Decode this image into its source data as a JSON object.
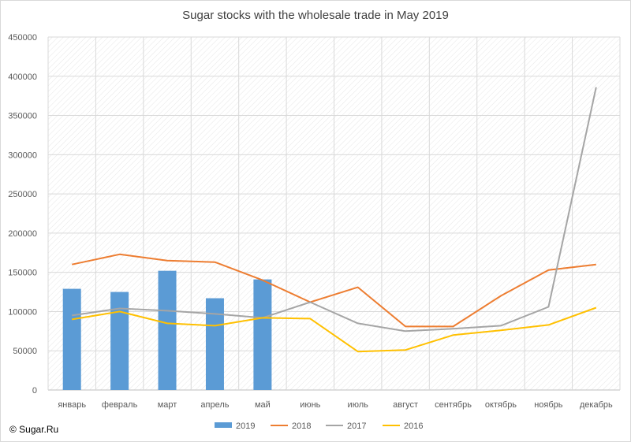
{
  "chart_data": {
    "type": "bar+line",
    "title": "Sugar stocks with the wholesale trade in May 2019",
    "xlabel": "",
    "ylabel": "",
    "categories": [
      "январь",
      "февраль",
      "март",
      "апрель",
      "май",
      "июнь",
      "июль",
      "август",
      "сентябрь",
      "октябрь",
      "ноябрь",
      "декабрь"
    ],
    "ylim": [
      0,
      450000
    ],
    "yticks": [
      0,
      50000,
      100000,
      150000,
      200000,
      250000,
      300000,
      350000,
      400000,
      450000
    ],
    "ytick_labels": [
      "0",
      "50000",
      "100000",
      "150000",
      "200000",
      "250000",
      "300000",
      "350000",
      "400000",
      "450000"
    ],
    "grid": true,
    "legend_position": "bottom",
    "series": [
      {
        "name": "2019",
        "kind": "bar",
        "color": "#5b9bd5",
        "values": [
          129000,
          125000,
          152000,
          117000,
          141000,
          null,
          null,
          null,
          null,
          null,
          null,
          null
        ]
      },
      {
        "name": "2018",
        "kind": "line",
        "color": "#ed7d31",
        "values": [
          160000,
          173000,
          165000,
          163000,
          140000,
          112000,
          131000,
          81000,
          81000,
          120000,
          153000,
          160000
        ]
      },
      {
        "name": "2017",
        "kind": "line",
        "color": "#a5a5a5",
        "values": [
          95000,
          104000,
          101000,
          97000,
          92000,
          112000,
          85000,
          75000,
          78000,
          82000,
          106000,
          386000
        ]
      },
      {
        "name": "2016",
        "kind": "line",
        "color": "#ffc000",
        "values": [
          90000,
          100000,
          85000,
          82000,
          92000,
          91000,
          49000,
          51000,
          70000,
          76000,
          83000,
          105000
        ]
      }
    ]
  },
  "source_text": "© Sugar.Ru"
}
